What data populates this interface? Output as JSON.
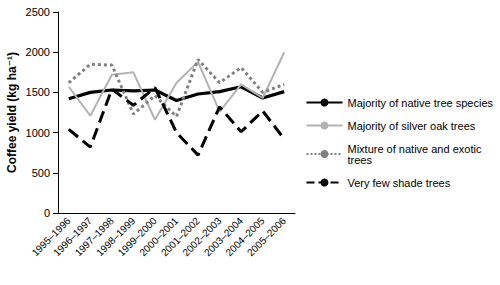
{
  "chart_data": {
    "type": "line",
    "y_label": "Coffee yield (kg ha⁻¹)",
    "categories": [
      "1995–1996",
      "1996–1997",
      "1997–1998",
      "1998–1999",
      "1999–2000",
      "2000–2001",
      "2001–2002",
      "2002–2003",
      "2003–2004",
      "2004–2005",
      "2005–2006"
    ],
    "series": [
      {
        "name": "Majority of native tree species",
        "color": "#000000",
        "line_style": "solid",
        "values": [
          1420,
          1500,
          1530,
          1520,
          1530,
          1400,
          1480,
          1510,
          1570,
          1430,
          1510
        ]
      },
      {
        "name": "Majority of silver oak trees",
        "color": "#b3b3b3",
        "line_style": "solid",
        "values": [
          1570,
          1210,
          1720,
          1750,
          1160,
          1620,
          1880,
          1260,
          1600,
          1430,
          2000
        ]
      },
      {
        "name": "Mixture of native and exotic trees",
        "color": "#808080",
        "line_style": "dotted",
        "values": [
          1620,
          1850,
          1840,
          1230,
          1460,
          1200,
          1910,
          1620,
          1810,
          1500,
          1600
        ]
      },
      {
        "name": "Very few shade trees",
        "color": "#000000",
        "line_style": "dashed",
        "values": [
          1040,
          820,
          1540,
          1340,
          1560,
          1000,
          720,
          1320,
          1010,
          1270,
          920
        ]
      }
    ],
    "ylim": [
      0,
      2500
    ],
    "yticks": [
      0,
      500,
      1000,
      1500,
      2000,
      2500
    ],
    "grid": false,
    "legend": "right"
  }
}
